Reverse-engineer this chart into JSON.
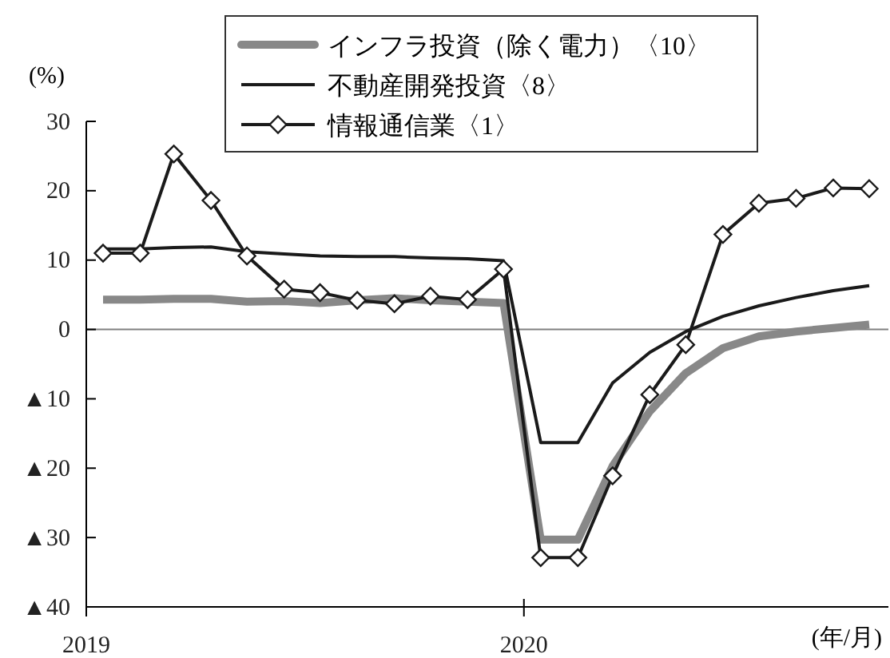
{
  "chart_data": {
    "type": "line",
    "ylabel": "(%)",
    "xlabel": "(年/月)",
    "x": [
      "2019-01-15",
      "2019-02-15",
      "2019-03-15",
      "2019-04-15",
      "2019-05-15",
      "2019-06-15",
      "2019-07-15",
      "2019-08-15",
      "2019-09-15",
      "2019-10-15",
      "2019-11-15",
      "2019-12-15",
      "2020-01-15",
      "2020-02-15",
      "2020-03-15",
      "2020-04-15",
      "2020-05-15",
      "2020-06-15",
      "2020-07-15",
      "2020-08-15",
      "2020-09-15",
      "2020-10-15"
    ],
    "xlim": [
      "2019-01-01",
      "2020-10-31"
    ],
    "xticks": [
      {
        "value": "2019-01-01",
        "label": "2019"
      },
      {
        "value": "2020-01-01",
        "label": "2020"
      }
    ],
    "ylim": [
      -40,
      30
    ],
    "yticks": [
      {
        "value": -40,
        "label": "▲40"
      },
      {
        "value": -30,
        "label": "▲30"
      },
      {
        "value": -20,
        "label": "▲20"
      },
      {
        "value": -10,
        "label": "▲10"
      },
      0,
      10,
      20,
      30
    ],
    "series": [
      {
        "name": "インフラ投資（除く電力）〈10〉",
        "color": "#888888",
        "marker": "none",
        "values": [
          4.3,
          4.3,
          4.4,
          4.4,
          4.0,
          4.1,
          3.8,
          4.2,
          4.5,
          4.2,
          4.0,
          3.8,
          -30.3,
          -30.3,
          -19.7,
          -11.8,
          -6.3,
          -2.7,
          -1.0,
          -0.3,
          0.2,
          0.7
        ]
      },
      {
        "name": "不動産開発投資〈8〉",
        "color": "#1a1a1a",
        "marker": "none",
        "values": [
          11.6,
          11.6,
          11.8,
          11.9,
          11.2,
          10.9,
          10.6,
          10.5,
          10.5,
          10.3,
          10.2,
          9.9,
          -16.3,
          -16.3,
          -7.7,
          -3.3,
          -0.3,
          1.9,
          3.4,
          4.6,
          5.6,
          6.3
        ]
      },
      {
        "name": "情報通信業〈1〉",
        "color": "#1a1a1a",
        "marker": "diamond",
        "values": [
          11.0,
          11.0,
          25.3,
          18.6,
          10.6,
          5.8,
          5.3,
          4.2,
          3.7,
          4.8,
          4.3,
          8.7,
          -32.9,
          -32.9,
          -21.1,
          -9.4,
          -2.2,
          13.7,
          18.2,
          18.9,
          20.4,
          20.3
        ]
      }
    ],
    "ref_lines": [
      {
        "axis": "y",
        "value": 0,
        "color": "#808080"
      }
    ],
    "legend": "top",
    "grid": false
  }
}
